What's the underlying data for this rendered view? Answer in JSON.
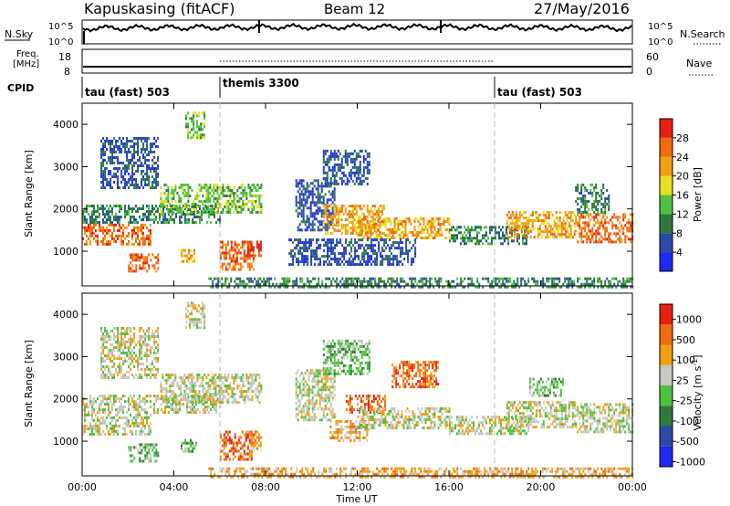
{
  "header": {
    "station": "Kapuskasing (fitACF)",
    "beam": "Beam 12",
    "date": "27/May/2016"
  },
  "noise_panel": {
    "left_label": "N.Sky",
    "right_label": "N.Search",
    "left_top_tick": "10^5",
    "left_bottom_tick": "10^0",
    "right_top_tick": "10^5",
    "right_bottom_tick": "10^0"
  },
  "freq_panel": {
    "left_label_line1": "Freq.",
    "left_label_line2": "[MHz]",
    "left_ticks": [
      "18",
      "8"
    ],
    "right_label": "Nave",
    "right_ticks": [
      "60",
      "0"
    ]
  },
  "cpid_panel": {
    "label": "CPID",
    "segments": [
      {
        "name": "tau (fast) 503",
        "start_h": 0,
        "end_h": 6
      },
      {
        "name": "themis 3300",
        "start_h": 6,
        "end_h": 18
      },
      {
        "name": "tau (fast) 503",
        "start_h": 18,
        "end_h": 24
      }
    ]
  },
  "x_axis": {
    "label": "Time UT",
    "ticks": [
      "00:00",
      "04:00",
      "08:00",
      "12:00",
      "16:00",
      "20:00",
      "00:00"
    ]
  },
  "power_colorbar": {
    "label": "Power [dB]",
    "ticks": [
      "4",
      "8",
      "12",
      "16",
      "20",
      "24",
      "28"
    ],
    "colors": [
      "#1e28f0",
      "#2a4aa8",
      "#2c7a3c",
      "#50c040",
      "#e8e020",
      "#f0a010",
      "#f06a10",
      "#e82010"
    ]
  },
  "velocity_colorbar": {
    "label": "Velocity [m s^-1]",
    "ticks": [
      "1000",
      "500",
      "100",
      "25",
      "-25",
      "-100",
      "-500",
      "-1000"
    ],
    "colors": [
      "#1e28f0",
      "#2a4aa8",
      "#2c7a3c",
      "#50c040",
      "#c8c8c0",
      "#f0a010",
      "#f06a10",
      "#e82010"
    ]
  },
  "chart_data": [
    {
      "type": "heatmap",
      "title": "",
      "xlabel": "",
      "ylabel": "Slant Range [km]",
      "xlim": [
        0,
        24
      ],
      "ylim": [
        180,
        4500
      ],
      "yticks": [
        "1000",
        "2000",
        "3000",
        "4000"
      ],
      "colorbar": "Power [dB]",
      "regions": [
        {
          "t0": 0.0,
          "t1": 3.0,
          "r0": 1150,
          "r1": 1650,
          "level": 6
        },
        {
          "t0": 2.0,
          "t1": 3.3,
          "r0": 500,
          "r1": 950,
          "level": 6
        },
        {
          "t0": 0.0,
          "t1": 6.0,
          "r0": 1650,
          "r1": 2100,
          "level": 2
        },
        {
          "t0": 0.8,
          "t1": 3.3,
          "r0": 2500,
          "r1": 3700,
          "level": 1
        },
        {
          "t0": 3.4,
          "t1": 7.8,
          "r0": 1950,
          "r1": 2600,
          "level": 3
        },
        {
          "t0": 4.5,
          "t1": 5.3,
          "r0": 3700,
          "r1": 4300,
          "level": 3
        },
        {
          "t0": 6.0,
          "t1": 7.5,
          "r0": 600,
          "r1": 1250,
          "level": 6
        },
        {
          "t0": 4.3,
          "t1": 5.0,
          "r0": 750,
          "r1": 1050,
          "level": 5
        },
        {
          "t0": 7.2,
          "t1": 7.8,
          "r0": 850,
          "r1": 1250,
          "level": 7
        },
        {
          "t0": 9.3,
          "t1": 11.0,
          "r0": 1500,
          "r1": 2700,
          "level": 1
        },
        {
          "t0": 10.5,
          "t1": 12.5,
          "r0": 2600,
          "r1": 3400,
          "level": 1
        },
        {
          "t0": 10.5,
          "t1": 13.2,
          "r0": 1400,
          "r1": 2100,
          "level": 5
        },
        {
          "t0": 12.0,
          "t1": 16.0,
          "r0": 1300,
          "r1": 1800,
          "level": 5
        },
        {
          "t0": 9.0,
          "t1": 14.5,
          "r0": 700,
          "r1": 1300,
          "level": 1
        },
        {
          "t0": 16.0,
          "t1": 19.5,
          "r0": 1200,
          "r1": 1600,
          "level": 2
        },
        {
          "t0": 18.5,
          "t1": 21.5,
          "r0": 1350,
          "r1": 1950,
          "level": 5
        },
        {
          "t0": 21.5,
          "t1": 24.0,
          "r0": 1200,
          "r1": 1900,
          "level": 6
        },
        {
          "t0": 21.5,
          "t1": 23.0,
          "r0": 1900,
          "r1": 2600,
          "level": 2
        },
        {
          "t0": 5.5,
          "t1": 24.0,
          "r0": 180,
          "r1": 380,
          "level": 2
        }
      ]
    },
    {
      "type": "heatmap",
      "title": "",
      "xlabel": "Time UT",
      "ylabel": "Slant Range [km]",
      "xlim": [
        0,
        24
      ],
      "ylim": [
        180,
        4500
      ],
      "yticks": [
        "1000",
        "2000",
        "3000",
        "4000"
      ],
      "colorbar": "Velocity [m s^-1]",
      "regions": [
        {
          "t0": 0.0,
          "t1": 3.0,
          "r0": 1150,
          "r1": 1650,
          "level": 4
        },
        {
          "t0": 2.0,
          "t1": 3.3,
          "r0": 500,
          "r1": 950,
          "level": 3
        },
        {
          "t0": 0.0,
          "t1": 6.0,
          "r0": 1650,
          "r1": 2100,
          "level": 4
        },
        {
          "t0": 0.8,
          "t1": 3.3,
          "r0": 2500,
          "r1": 3700,
          "level": 4
        },
        {
          "t0": 3.4,
          "t1": 7.8,
          "r0": 1950,
          "r1": 2600,
          "level": 4
        },
        {
          "t0": 4.5,
          "t1": 5.3,
          "r0": 3700,
          "r1": 4300,
          "level": 4
        },
        {
          "t0": 6.0,
          "t1": 7.5,
          "r0": 600,
          "r1": 1250,
          "level": 6
        },
        {
          "t0": 4.3,
          "t1": 5.0,
          "r0": 750,
          "r1": 1050,
          "level": 3
        },
        {
          "t0": 7.2,
          "t1": 7.8,
          "r0": 850,
          "r1": 1250,
          "level": 5
        },
        {
          "t0": 9.3,
          "t1": 11.0,
          "r0": 1500,
          "r1": 2700,
          "level": 4
        },
        {
          "t0": 10.5,
          "t1": 12.5,
          "r0": 2600,
          "r1": 3400,
          "level": 3
        },
        {
          "t0": 11.5,
          "t1": 13.2,
          "r0": 1700,
          "r1": 2100,
          "level": 6
        },
        {
          "t0": 10.8,
          "t1": 12.5,
          "r0": 1000,
          "r1": 1500,
          "level": 5
        },
        {
          "t0": 12.0,
          "t1": 16.0,
          "r0": 1300,
          "r1": 1800,
          "level": 4
        },
        {
          "t0": 13.5,
          "t1": 15.5,
          "r0": 2300,
          "r1": 2900,
          "level": 6
        },
        {
          "t0": 16.0,
          "t1": 19.5,
          "r0": 1200,
          "r1": 1600,
          "level": 4
        },
        {
          "t0": 18.5,
          "t1": 21.5,
          "r0": 1350,
          "r1": 1950,
          "level": 4
        },
        {
          "t0": 21.5,
          "t1": 24.0,
          "r0": 1200,
          "r1": 1900,
          "level": 4
        },
        {
          "t0": 19.5,
          "t1": 21.0,
          "r0": 2100,
          "r1": 2500,
          "level": 3
        },
        {
          "t0": 5.5,
          "t1": 24.0,
          "r0": 180,
          "r1": 380,
          "level": 5
        }
      ]
    }
  ]
}
